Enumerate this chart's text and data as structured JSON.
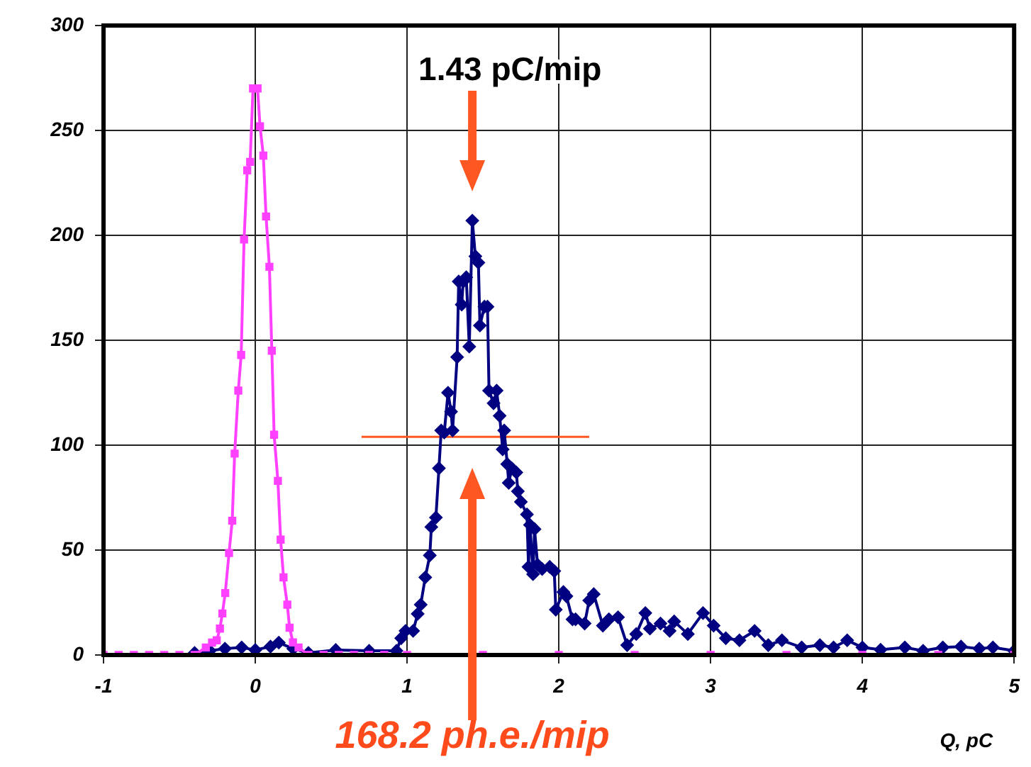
{
  "chart_data": {
    "type": "line",
    "xlabel": "Q, pC",
    "xlim": [
      -1,
      5
    ],
    "xticks": [
      -1,
      0,
      1,
      2,
      3,
      4,
      5
    ],
    "ylim": [
      0,
      300
    ],
    "yticks": [
      0,
      50,
      100,
      150,
      200,
      250,
      300
    ],
    "grid": true,
    "legend": false,
    "annotations": [
      "1.43 pC/mip",
      "168.2 ph.e./mip"
    ],
    "series": [
      {
        "color": "#ff40ff",
        "marker": "square",
        "x": [
          -1,
          -0.9,
          -0.8,
          -0.7,
          -0.6,
          -0.5,
          -0.4,
          -0.326,
          -0.285,
          -0.254,
          -0.233,
          -0.217,
          -0.198,
          -0.173,
          -0.152,
          -0.136,
          -0.112,
          -0.093,
          -0.074,
          -0.053,
          -0.034,
          -0.015,
          0.015,
          0.031,
          0.053,
          0.071,
          0.093,
          0.109,
          0.124,
          0.149,
          0.167,
          0.186,
          0.211,
          0.226,
          0.248,
          0.285,
          0.35,
          0.45,
          0.55,
          0.65,
          0.75,
          0.85,
          1,
          1.5,
          2,
          2.5,
          3,
          3.5,
          4,
          4.5,
          5
        ],
        "values": [
          0,
          0,
          0,
          0,
          0,
          0,
          0,
          3.6,
          5.9,
          7,
          12.6,
          19.8,
          29.5,
          48.6,
          64,
          96,
          126,
          143,
          198,
          231,
          235,
          270,
          270,
          252,
          238,
          209,
          185,
          145,
          105,
          83,
          55,
          37,
          24,
          13,
          6,
          3.6,
          0,
          0,
          0,
          0,
          0,
          0,
          0,
          0,
          0,
          0,
          0,
          0,
          0,
          0,
          0
        ]
      },
      {
        "color": "#000080",
        "marker": "diamond",
        "x": [
          -0.4,
          -0.3,
          -0.2,
          -0.09,
          0,
          0.1,
          0.155,
          0.25,
          0.35,
          0.53,
          0.75,
          0.93,
          0.961,
          0.99,
          1.04,
          1.07,
          1.09,
          1.12,
          1.15,
          1.16,
          1.19,
          1.21,
          1.225,
          1.245,
          1.27,
          1.29,
          1.3,
          1.33,
          1.34,
          1.36,
          1.37,
          1.39,
          1.41,
          1.43,
          1.45,
          1.47,
          1.48,
          1.51,
          1.53,
          1.54,
          1.57,
          1.59,
          1.61,
          1.63,
          1.64,
          1.66,
          1.67,
          1.69,
          1.72,
          1.73,
          1.75,
          1.79,
          1.8,
          1.81,
          1.83,
          1.84,
          1.86,
          1.89,
          1.94,
          1.97,
          1.98,
          2.03,
          2.05,
          2.09,
          2.11,
          2.17,
          2.2,
          2.23,
          2.29,
          2.33,
          2.39,
          2.45,
          2.51,
          2.57,
          2.6,
          2.67,
          2.73,
          2.76,
          2.85,
          2.95,
          3.02,
          3.1,
          3.19,
          3.29,
          3.38,
          3.47,
          3.6,
          3.72,
          3.81,
          3.9,
          4,
          4.12,
          4.28,
          4.4,
          4.53,
          4.65,
          4.77,
          4.86,
          5
        ],
        "values": [
          1,
          2,
          3,
          3.6,
          2.4,
          4,
          5.9,
          3,
          1,
          2.4,
          2,
          2,
          8,
          11.5,
          11.5,
          19.6,
          24,
          37,
          47.5,
          61,
          65.5,
          89,
          107,
          106,
          125,
          116,
          107,
          142,
          178,
          167,
          178,
          180,
          147,
          207,
          190,
          187,
          157,
          166,
          166,
          126,
          120,
          126,
          114,
          98,
          107,
          91,
          82,
          89,
          87,
          78,
          73,
          67,
          42,
          62,
          38.5,
          60,
          43,
          41,
          42,
          40,
          21.6,
          30,
          28,
          17,
          17,
          15,
          26,
          29,
          14,
          17,
          18,
          4.7,
          10,
          20,
          12.6,
          15,
          11.5,
          16,
          10,
          20,
          14,
          8,
          7,
          11.5,
          4.7,
          7,
          3.6,
          4.7,
          3.6,
          7,
          3.6,
          2.5,
          3.6,
          2,
          3.6,
          4,
          3,
          3.6,
          2
        ]
      },
      {
        "color": "#ff5722",
        "marker": "none",
        "x": [
          0.7,
          2.2
        ],
        "values": [
          104,
          104
        ]
      }
    ]
  }
}
